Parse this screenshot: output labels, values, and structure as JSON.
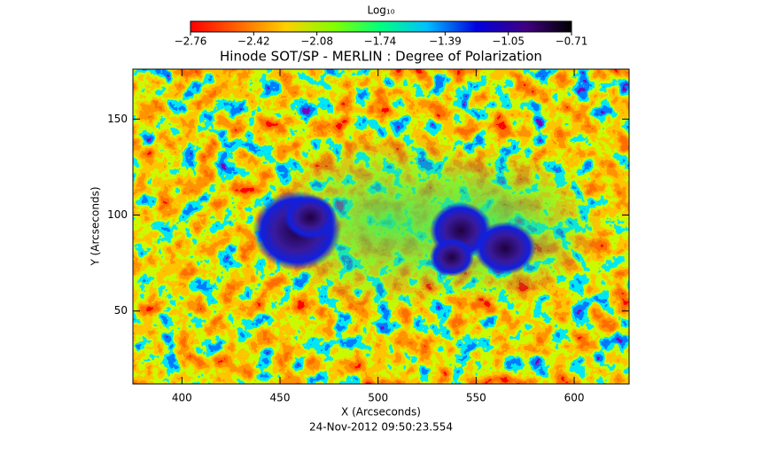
{
  "chart_data": {
    "type": "image",
    "colorbar_label": "Log₁₀",
    "colorbar_ticks": [
      {
        "value": -2.76,
        "label": "−2.76"
      },
      {
        "value": -2.42,
        "label": "−2.42"
      },
      {
        "value": -2.08,
        "label": "−2.08"
      },
      {
        "value": -1.74,
        "label": "−1.74"
      },
      {
        "value": -1.39,
        "label": "−1.39"
      },
      {
        "value": -1.05,
        "label": "−1.05"
      },
      {
        "value": -0.71,
        "label": "−0.71"
      }
    ],
    "colorbar_lim": [
      -2.76,
      -0.71
    ],
    "title": "Hinode SOT/SP - MERLIN : Degree of Polarization",
    "xlabel": "X (Arcseconds)",
    "ylabel": "Y (Arcseconds)",
    "subtitle": "24-Nov-2012 09:50:23.554",
    "xlim": [
      375,
      628
    ],
    "xticks": [
      400,
      450,
      500,
      550,
      600
    ],
    "ylim": [
      12,
      176
    ],
    "yticks": [
      50,
      100,
      150
    ]
  }
}
